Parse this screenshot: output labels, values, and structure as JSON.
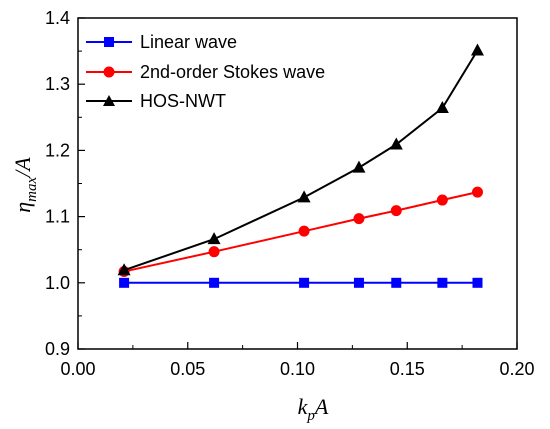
{
  "chart_data": {
    "type": "line",
    "xlabel": {
      "main": "k",
      "sub": "p",
      "tail": "A"
    },
    "ylabel": {
      "main": "η",
      "sub": "max",
      "tail": "/A"
    },
    "xlim": [
      0.0,
      0.2
    ],
    "ylim": [
      0.9,
      1.4
    ],
    "xticks": [
      "0.00",
      "0.05",
      "0.10",
      "0.15",
      "0.20"
    ],
    "yticks": [
      "0.9",
      "1.0",
      "1.1",
      "1.2",
      "1.3",
      "1.4"
    ],
    "grid": false,
    "legend_position": "top-left",
    "x": [
      0.021,
      0.062,
      0.103,
      0.128,
      0.145,
      0.166,
      0.182
    ],
    "series": [
      {
        "name": "Linear wave",
        "color": "#0000ff",
        "marker": "square",
        "values": [
          1.0,
          1.0,
          1.0,
          1.0,
          1.0,
          1.0,
          1.0
        ]
      },
      {
        "name": "2nd-order Stokes wave",
        "color": "#ff0000",
        "marker": "circle",
        "values": [
          1.017,
          1.047,
          1.078,
          1.097,
          1.109,
          1.125,
          1.137
        ]
      },
      {
        "name": "HOS-NWT",
        "color": "#000000",
        "marker": "triangle",
        "values": [
          1.019,
          1.066,
          1.129,
          1.174,
          1.209,
          1.264,
          1.351
        ]
      }
    ]
  }
}
